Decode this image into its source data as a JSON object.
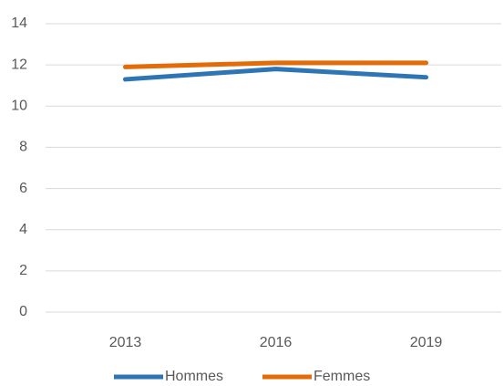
{
  "chart_data": {
    "type": "line",
    "categories": [
      "2013",
      "2016",
      "2019"
    ],
    "series": [
      {
        "name": "Hommes",
        "color": "#2e75b6",
        "values": [
          11.3,
          11.8,
          11.4
        ]
      },
      {
        "name": "Femmes",
        "color": "#e36c09",
        "values": [
          11.9,
          12.1,
          12.1
        ]
      }
    ],
    "ylim": [
      0,
      14
    ],
    "yticks": [
      0,
      2,
      4,
      6,
      8,
      10,
      12,
      14
    ],
    "grid": true,
    "legend": "bottom"
  }
}
